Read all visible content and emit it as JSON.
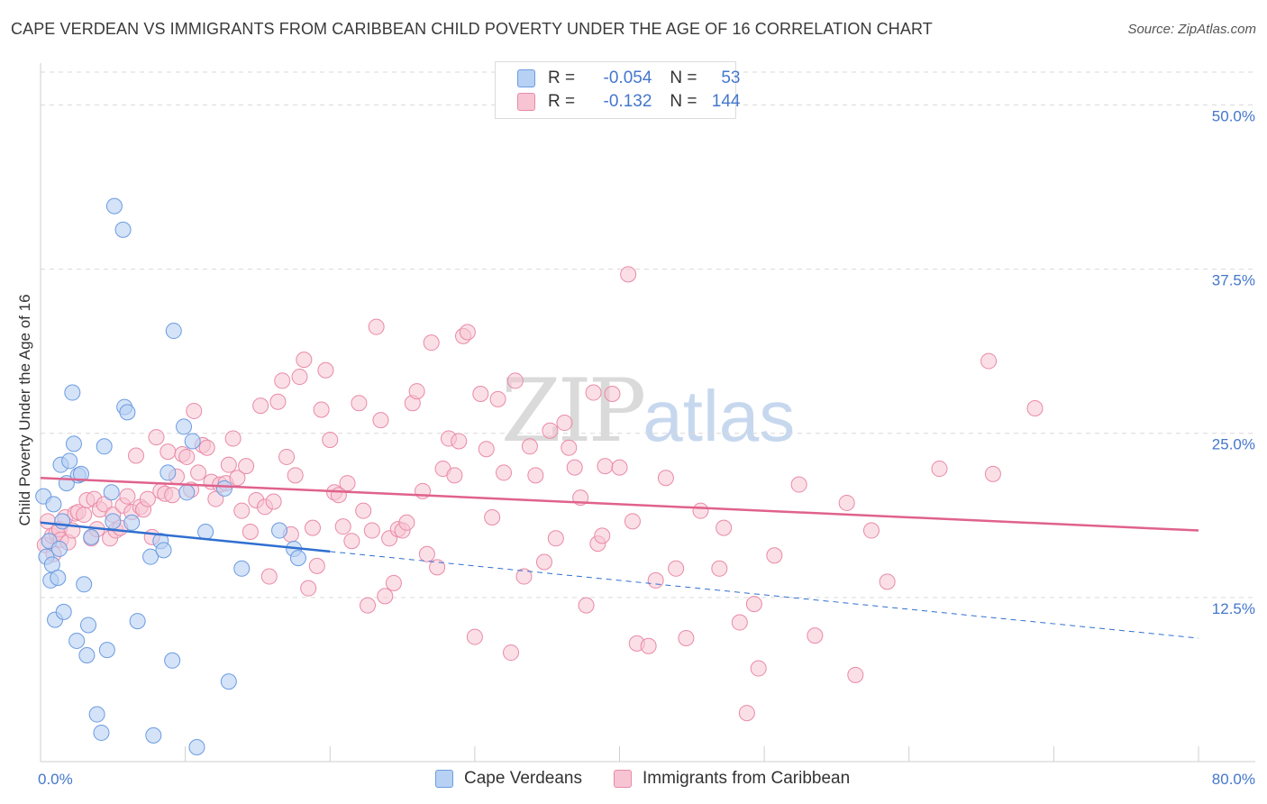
{
  "header": {
    "title": "CAPE VERDEAN VS IMMIGRANTS FROM CARIBBEAN CHILD POVERTY UNDER THE AGE OF 16 CORRELATION CHART",
    "source": "Source: ZipAtlas.com"
  },
  "watermark": {
    "zip": "ZIP",
    "atlas": "atlas"
  },
  "legend": {
    "rows": [
      {
        "r_label": "R =",
        "r_value": "-0.054",
        "n_label": "N =",
        "n_value": "53"
      },
      {
        "r_label": "R =",
        "r_value": "-0.132",
        "n_label": "N =",
        "n_value": "144"
      }
    ]
  },
  "colors": {
    "blue_fill": "#b7d1f4",
    "blue_stroke": "#6b9be0",
    "blue_line": "#2f6fd0",
    "pink_fill": "#f7c4d4",
    "pink_stroke": "#e98aa7",
    "pink_line": "#e0628c",
    "grid": "#d9d9d9",
    "axis_text": "#4477cc"
  },
  "chart_data": {
    "type": "scatter",
    "title": "CAPE VERDEAN VS IMMIGRANTS FROM CARIBBEAN CHILD POVERTY UNDER THE AGE OF 16 CORRELATION CHART",
    "xlabel": "",
    "ylabel": "Child Poverty Under the Age of 16",
    "xlim": [
      0,
      80
    ],
    "ylim": [
      0,
      52.5
    ],
    "x_tick_labels": [
      "0.0%",
      "80.0%"
    ],
    "y_ticks": [
      12.5,
      25.0,
      37.5,
      50.0
    ],
    "y_tick_labels": [
      "12.5%",
      "25.0%",
      "37.5%",
      "50.0%"
    ],
    "series": [
      {
        "name": "Cape Verdeans",
        "r": -0.054,
        "n": 53,
        "trend": {
          "x0": 0,
          "y0": 18.2,
          "x1": 20,
          "y1": 16.0,
          "dash_x1": 80,
          "dash_y1": 9.4
        },
        "points": [
          [
            0.2,
            20.2
          ],
          [
            0.4,
            15.6
          ],
          [
            0.6,
            16.8
          ],
          [
            0.7,
            13.8
          ],
          [
            0.8,
            15.0
          ],
          [
            0.9,
            19.6
          ],
          [
            1.0,
            10.8
          ],
          [
            1.2,
            14.0
          ],
          [
            1.3,
            16.2
          ],
          [
            1.4,
            22.6
          ],
          [
            1.5,
            18.3
          ],
          [
            1.6,
            11.4
          ],
          [
            1.8,
            21.2
          ],
          [
            2.0,
            22.9
          ],
          [
            2.2,
            28.1
          ],
          [
            2.3,
            24.2
          ],
          [
            2.5,
            9.2
          ],
          [
            2.6,
            21.8
          ],
          [
            2.8,
            21.9
          ],
          [
            3.0,
            13.5
          ],
          [
            3.2,
            8.1
          ],
          [
            3.3,
            10.4
          ],
          [
            3.5,
            17.1
          ],
          [
            3.9,
            3.6
          ],
          [
            4.2,
            2.2
          ],
          [
            4.4,
            24.0
          ],
          [
            4.6,
            8.5
          ],
          [
            4.9,
            20.5
          ],
          [
            5.0,
            18.3
          ],
          [
            5.1,
            42.3
          ],
          [
            5.7,
            40.5
          ],
          [
            5.8,
            27.0
          ],
          [
            6.0,
            26.6
          ],
          [
            6.3,
            18.2
          ],
          [
            6.7,
            10.7
          ],
          [
            7.6,
            15.6
          ],
          [
            7.8,
            2.0
          ],
          [
            8.3,
            16.8
          ],
          [
            8.5,
            16.1
          ],
          [
            8.8,
            22.0
          ],
          [
            9.1,
            7.7
          ],
          [
            9.2,
            32.8
          ],
          [
            9.9,
            25.5
          ],
          [
            10.1,
            20.5
          ],
          [
            10.5,
            24.4
          ],
          [
            10.8,
            1.1
          ],
          [
            11.4,
            17.5
          ],
          [
            12.7,
            20.8
          ],
          [
            13.0,
            6.1
          ],
          [
            13.9,
            14.7
          ],
          [
            16.5,
            17.6
          ],
          [
            17.5,
            16.2
          ],
          [
            17.8,
            15.5
          ]
        ]
      },
      {
        "name": "Immigrants from Caribbean",
        "r": -0.132,
        "n": 144,
        "trend": {
          "x0": 0,
          "y0": 21.6,
          "x1": 80,
          "y1": 17.6
        },
        "points": [
          [
            0.3,
            16.5
          ],
          [
            0.5,
            18.3
          ],
          [
            0.8,
            17.2
          ],
          [
            0.9,
            15.8
          ],
          [
            1.1,
            17.4
          ],
          [
            1.3,
            17.7
          ],
          [
            1.4,
            16.9
          ],
          [
            1.7,
            18.6
          ],
          [
            1.9,
            16.7
          ],
          [
            2.2,
            17.6
          ],
          [
            2.4,
            18.9
          ],
          [
            2.6,
            19.0
          ],
          [
            3.0,
            18.8
          ],
          [
            3.2,
            19.9
          ],
          [
            3.5,
            17.0
          ],
          [
            3.7,
            20.0
          ],
          [
            3.9,
            17.7
          ],
          [
            4.1,
            19.2
          ],
          [
            4.4,
            19.6
          ],
          [
            4.8,
            17.0
          ],
          [
            5.0,
            18.8
          ],
          [
            5.2,
            17.6
          ],
          [
            5.5,
            17.8
          ],
          [
            5.7,
            19.5
          ],
          [
            6.0,
            20.2
          ],
          [
            6.3,
            19.0
          ],
          [
            6.6,
            23.3
          ],
          [
            6.9,
            19.4
          ],
          [
            7.1,
            19.2
          ],
          [
            7.4,
            20.0
          ],
          [
            7.7,
            17.1
          ],
          [
            8.0,
            24.7
          ],
          [
            8.3,
            20.6
          ],
          [
            8.6,
            20.4
          ],
          [
            8.8,
            23.6
          ],
          [
            9.1,
            20.3
          ],
          [
            9.4,
            21.7
          ],
          [
            9.8,
            23.4
          ],
          [
            10.1,
            23.2
          ],
          [
            10.4,
            20.7
          ],
          [
            10.6,
            26.7
          ],
          [
            10.9,
            22.0
          ],
          [
            11.2,
            24.1
          ],
          [
            11.5,
            23.9
          ],
          [
            11.8,
            21.3
          ],
          [
            12.1,
            20.0
          ],
          [
            12.4,
            21.1
          ],
          [
            12.8,
            21.2
          ],
          [
            13.0,
            22.6
          ],
          [
            13.3,
            24.6
          ],
          [
            13.6,
            21.6
          ],
          [
            13.9,
            19.1
          ],
          [
            14.2,
            22.5
          ],
          [
            14.5,
            17.5
          ],
          [
            14.9,
            19.9
          ],
          [
            15.2,
            27.1
          ],
          [
            15.5,
            19.4
          ],
          [
            15.8,
            14.1
          ],
          [
            16.1,
            19.8
          ],
          [
            16.4,
            27.4
          ],
          [
            16.7,
            29.0
          ],
          [
            17.0,
            23.2
          ],
          [
            17.3,
            17.3
          ],
          [
            17.6,
            21.8
          ],
          [
            17.9,
            29.3
          ],
          [
            18.2,
            30.6
          ],
          [
            18.5,
            13.2
          ],
          [
            18.8,
            17.8
          ],
          [
            19.1,
            14.9
          ],
          [
            19.4,
            26.8
          ],
          [
            19.7,
            29.8
          ],
          [
            20.0,
            24.5
          ],
          [
            20.3,
            20.5
          ],
          [
            20.6,
            20.3
          ],
          [
            20.9,
            17.9
          ],
          [
            21.2,
            21.2
          ],
          [
            21.5,
            16.8
          ],
          [
            22.0,
            27.3
          ],
          [
            22.3,
            19.1
          ],
          [
            22.6,
            11.9
          ],
          [
            22.9,
            17.6
          ],
          [
            23.2,
            33.1
          ],
          [
            23.5,
            26.0
          ],
          [
            23.8,
            12.6
          ],
          [
            24.1,
            17.0
          ],
          [
            24.4,
            13.6
          ],
          [
            24.7,
            17.7
          ],
          [
            25.0,
            17.6
          ],
          [
            25.3,
            18.2
          ],
          [
            25.7,
            27.3
          ],
          [
            26.0,
            28.2
          ],
          [
            26.4,
            20.6
          ],
          [
            26.7,
            15.8
          ],
          [
            27.0,
            31.9
          ],
          [
            27.4,
            14.8
          ],
          [
            27.8,
            22.3
          ],
          [
            28.2,
            24.6
          ],
          [
            28.6,
            21.8
          ],
          [
            28.9,
            24.4
          ],
          [
            29.2,
            32.4
          ],
          [
            29.5,
            32.7
          ],
          [
            30.0,
            9.5
          ],
          [
            30.4,
            28.0
          ],
          [
            30.8,
            23.8
          ],
          [
            31.2,
            18.6
          ],
          [
            31.6,
            27.6
          ],
          [
            32.0,
            22.0
          ],
          [
            32.5,
            8.3
          ],
          [
            32.8,
            29.0
          ],
          [
            33.4,
            14.1
          ],
          [
            33.8,
            24.0
          ],
          [
            34.2,
            21.8
          ],
          [
            34.8,
            15.2
          ],
          [
            35.2,
            25.2
          ],
          [
            35.6,
            17.0
          ],
          [
            36.2,
            25.8
          ],
          [
            36.5,
            23.9
          ],
          [
            36.9,
            22.4
          ],
          [
            37.3,
            20.1
          ],
          [
            37.7,
            11.9
          ],
          [
            38.2,
            28.1
          ],
          [
            38.5,
            16.6
          ],
          [
            38.8,
            17.2
          ],
          [
            39.0,
            22.5
          ],
          [
            39.5,
            28.0
          ],
          [
            40.0,
            22.4
          ],
          [
            40.6,
            37.1
          ],
          [
            40.9,
            18.3
          ],
          [
            41.2,
            9.0
          ],
          [
            42.0,
            8.8
          ],
          [
            42.5,
            13.8
          ],
          [
            43.2,
            21.6
          ],
          [
            43.9,
            14.7
          ],
          [
            44.6,
            9.4
          ],
          [
            45.6,
            19.1
          ],
          [
            46.9,
            14.7
          ],
          [
            47.2,
            17.8
          ],
          [
            48.3,
            10.6
          ],
          [
            48.8,
            3.7
          ],
          [
            49.3,
            12.0
          ],
          [
            49.6,
            7.1
          ],
          [
            50.7,
            15.7
          ],
          [
            52.4,
            21.1
          ],
          [
            53.5,
            9.6
          ],
          [
            55.7,
            19.7
          ],
          [
            56.3,
            6.6
          ],
          [
            57.4,
            17.6
          ],
          [
            58.5,
            13.7
          ],
          [
            62.1,
            22.3
          ],
          [
            65.5,
            30.5
          ],
          [
            65.8,
            21.9
          ],
          [
            68.7,
            26.9
          ]
        ]
      }
    ]
  },
  "bottom_legend": [
    {
      "label": "Cape Verdeans"
    },
    {
      "label": "Immigrants from Caribbean"
    }
  ]
}
